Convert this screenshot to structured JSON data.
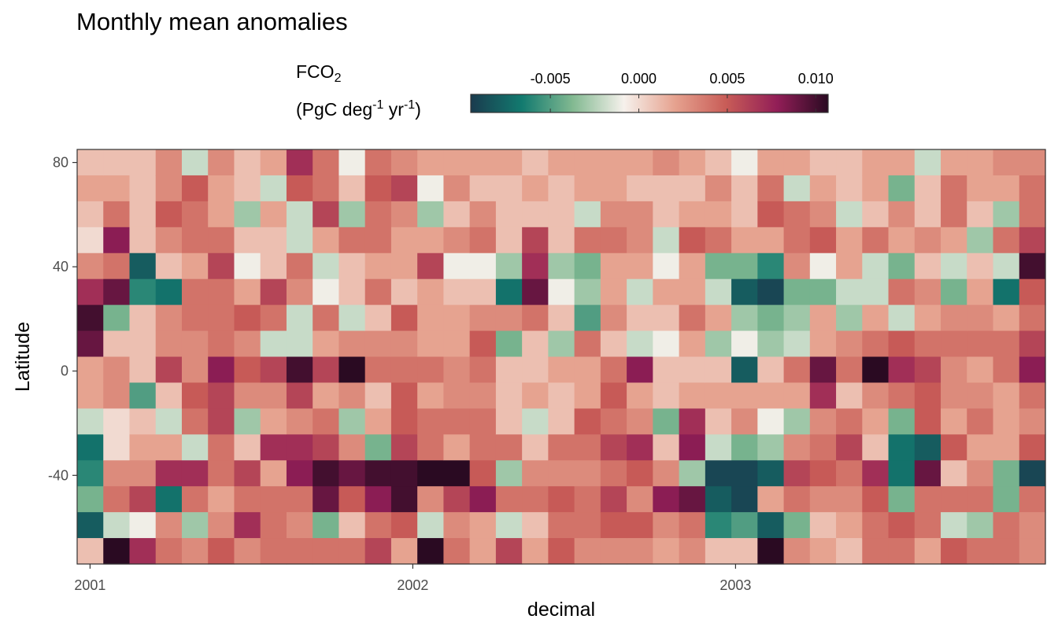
{
  "chart_data": {
    "type": "heatmap",
    "title": "Monthly mean anomalies",
    "xlabel": "decimal",
    "ylabel": "Latitude",
    "legend": {
      "title_line1": "FCO",
      "title_line1_sub": "2",
      "title_line2_a": "(PgC deg",
      "title_line2_sup1": "-1",
      "title_line2_b": " yr",
      "title_line2_sup2": "-1",
      "title_line2_c": ")",
      "placement": "top",
      "range": [
        -0.0095,
        0.0107
      ],
      "ticks": [
        -0.005,
        0.0,
        0.005,
        0.01
      ],
      "tick_labels": [
        "-0.005",
        "0.000",
        "0.005",
        "0.010"
      ],
      "colormap": [
        "#1a3b4e",
        "#127a6f",
        "#82b991",
        "#f6f1ec",
        "#e6a28f",
        "#c85c57",
        "#921e57",
        "#2a0a22"
      ]
    },
    "x_ticks": [
      2001,
      2002,
      2003
    ],
    "x_tick_labels": [
      "2001",
      "2002",
      "2003"
    ],
    "y_ticks": [
      80,
      40,
      0,
      -40
    ],
    "y_tick_labels": [
      "80",
      "40",
      "0",
      "-40"
    ],
    "xlim": [
      2000.96,
      2003.96
    ],
    "ylim": [
      -74,
      85
    ],
    "columns": [
      "2001-01",
      "2001-02",
      "2001-03",
      "2001-04",
      "2001-05",
      "2001-06",
      "2001-07",
      "2001-08",
      "2001-09",
      "2001-10",
      "2001-11",
      "2001-12",
      "2002-01",
      "2002-02",
      "2002-03",
      "2002-04",
      "2002-05",
      "2002-06",
      "2002-07",
      "2002-08",
      "2002-09",
      "2002-10",
      "2002-11",
      "2002-12",
      "2003-01",
      "2003-02",
      "2003-03",
      "2003-04",
      "2003-05",
      "2003-06",
      "2003-07",
      "2003-08",
      "2003-09",
      "2003-10",
      "2003-11",
      "2003-12",
      "2004-01"
    ],
    "lat_bands": [
      80,
      70,
      60,
      50,
      40,
      30,
      20,
      10,
      0,
      -10,
      -20,
      -30,
      -40,
      -50,
      -60,
      -70
    ],
    "values": [
      [
        0.001,
        0.002,
        0.001,
        0.0,
        0.003,
        0.007,
        0.01,
        0.009,
        0.002,
        0.002,
        -0.002,
        -0.007,
        -0.006,
        -0.004,
        -0.008,
        0.001
      ],
      [
        0.001,
        0.002,
        0.004,
        0.008,
        0.004,
        0.009,
        -0.004,
        0.001,
        0.003,
        0.003,
        0.0,
        0.0,
        0.003,
        0.004,
        -0.002,
        0.011
      ],
      [
        0.001,
        0.001,
        0.001,
        0.001,
        -0.008,
        -0.006,
        0.001,
        0.001,
        0.001,
        -0.005,
        0.001,
        0.002,
        0.003,
        0.006,
        -0.001,
        0.007
      ],
      [
        0.003,
        0.003,
        0.005,
        0.003,
        0.001,
        -0.007,
        0.003,
        0.003,
        0.006,
        0.001,
        -0.002,
        0.002,
        0.007,
        -0.007,
        0.003,
        0.004
      ],
      [
        -0.002,
        0.005,
        0.004,
        0.004,
        0.002,
        0.004,
        0.004,
        0.003,
        0.003,
        0.005,
        0.004,
        -0.002,
        0.007,
        0.004,
        -0.003,
        0.003
      ],
      [
        0.003,
        0.002,
        0.002,
        0.004,
        0.006,
        0.004,
        0.004,
        0.004,
        0.008,
        0.006,
        0.006,
        0.004,
        0.004,
        0.002,
        0.003,
        0.005
      ],
      [
        0.001,
        0.001,
        -0.003,
        0.001,
        -0.001,
        0.002,
        0.005,
        0.003,
        0.005,
        0.003,
        -0.003,
        0.001,
        0.006,
        0.004,
        0.007,
        0.003
      ],
      [
        0.002,
        -0.002,
        0.002,
        0.001,
        0.001,
        0.006,
        0.004,
        -0.002,
        0.006,
        0.003,
        0.002,
        0.007,
        0.002,
        0.004,
        0.004,
        0.004
      ],
      [
        0.007,
        0.005,
        -0.002,
        -0.002,
        0.004,
        0.003,
        -0.002,
        -0.002,
        0.01,
        0.006,
        0.003,
        0.007,
        0.008,
        0.004,
        0.003,
        0.004
      ],
      [
        0.004,
        0.004,
        0.006,
        0.002,
        -0.002,
        -0.001,
        0.004,
        0.002,
        0.006,
        0.002,
        0.004,
        0.006,
        0.01,
        0.009,
        -0.004,
        0.004
      ],
      [
        -0.001,
        0.001,
        -0.003,
        0.004,
        0.001,
        0.001,
        -0.002,
        0.003,
        0.011,
        0.003,
        -0.003,
        0.003,
        0.009,
        0.005,
        0.001,
        0.004
      ],
      [
        0.004,
        0.005,
        0.004,
        0.004,
        0.002,
        0.004,
        0.001,
        0.003,
        0.004,
        0.001,
        0.002,
        -0.004,
        0.01,
        0.008,
        0.004,
        0.006
      ],
      [
        0.003,
        0.006,
        0.003,
        0.002,
        0.002,
        0.001,
        0.005,
        0.003,
        0.004,
        0.005,
        0.005,
        0.006,
        0.01,
        0.01,
        0.005,
        0.002
      ],
      [
        0.002,
        -0.001,
        -0.003,
        0.002,
        0.006,
        0.002,
        0.002,
        0.002,
        0.004,
        0.002,
        0.004,
        0.004,
        0.011,
        0.003,
        -0.002,
        0.011
      ],
      [
        0.002,
        0.003,
        0.001,
        0.003,
        -0.001,
        0.001,
        0.002,
        0.002,
        0.003,
        0.003,
        0.004,
        0.002,
        0.011,
        0.006,
        0.003,
        0.004
      ],
      [
        0.002,
        0.001,
        0.003,
        0.004,
        -0.001,
        0.001,
        0.003,
        0.005,
        0.004,
        0.003,
        0.004,
        0.004,
        0.005,
        0.008,
        0.002,
        0.002
      ],
      [
        0.002,
        0.001,
        0.001,
        0.001,
        -0.003,
        -0.007,
        0.003,
        -0.004,
        0.001,
        0.001,
        0.001,
        0.004,
        -0.003,
        0.004,
        -0.002,
        0.006
      ],
      [
        0.001,
        0.002,
        0.001,
        0.006,
        0.007,
        0.009,
        0.004,
        0.001,
        0.001,
        0.002,
        -0.002,
        0.001,
        0.003,
        0.004,
        0.001,
        0.002
      ],
      [
        0.002,
        0.001,
        0.001,
        0.001,
        -0.003,
        -0.001,
        0.001,
        -0.003,
        0.002,
        0.001,
        0.001,
        0.004,
        0.003,
        0.005,
        0.004,
        0.005
      ],
      [
        0.002,
        0.002,
        -0.002,
        0.004,
        -0.004,
        -0.003,
        -0.005,
        0.004,
        0.002,
        0.002,
        0.005,
        0.004,
        0.003,
        0.004,
        0.004,
        0.003
      ],
      [
        0.002,
        0.002,
        0.003,
        0.004,
        0.002,
        0.002,
        0.003,
        0.001,
        0.004,
        0.005,
        0.004,
        0.006,
        0.004,
        0.006,
        0.005,
        0.003
      ],
      [
        0.002,
        0.001,
        0.003,
        0.003,
        0.002,
        -0.002,
        0.001,
        -0.002,
        0.008,
        0.002,
        0.003,
        0.007,
        0.005,
        0.003,
        0.005,
        0.003
      ],
      [
        0.003,
        0.001,
        0.001,
        -0.002,
        -0.001,
        0.002,
        0.001,
        -0.001,
        0.001,
        0.001,
        -0.004,
        0.001,
        0.003,
        0.008,
        0.003,
        0.002
      ],
      [
        0.002,
        0.001,
        0.002,
        0.005,
        0.002,
        0.002,
        0.004,
        0.002,
        0.001,
        0.002,
        0.007,
        0.008,
        -0.003,
        0.009,
        0.004,
        0.003
      ],
      [
        0.001,
        0.003,
        0.002,
        0.004,
        -0.004,
        -0.002,
        0.002,
        -0.003,
        0.001,
        0.002,
        0.001,
        -0.002,
        -0.009,
        -0.008,
        -0.006,
        0.001
      ],
      [
        -0.001,
        0.001,
        0.001,
        0.002,
        -0.004,
        -0.008,
        -0.003,
        -0.001,
        -0.008,
        0.002,
        0.003,
        -0.004,
        -0.009,
        -0.009,
        -0.005,
        0.001
      ],
      [
        0.002,
        0.004,
        0.005,
        0.002,
        -0.006,
        -0.009,
        -0.004,
        -0.003,
        0.001,
        0.002,
        -0.001,
        -0.003,
        -0.008,
        0.002,
        -0.008,
        0.011
      ],
      [
        0.002,
        -0.002,
        0.004,
        0.004,
        0.003,
        -0.004,
        -0.003,
        -0.002,
        0.004,
        0.002,
        -0.003,
        0.003,
        0.006,
        0.004,
        -0.004,
        0.003
      ],
      [
        0.001,
        0.002,
        0.003,
        0.005,
        -0.001,
        -0.004,
        0.002,
        0.002,
        0.009,
        0.007,
        0.003,
        0.004,
        0.005,
        0.003,
        0.001,
        0.002
      ],
      [
        0.001,
        0.001,
        -0.002,
        0.002,
        0.002,
        -0.002,
        -0.003,
        0.003,
        0.004,
        0.001,
        0.004,
        0.006,
        0.004,
        0.003,
        0.002,
        0.001
      ],
      [
        0.002,
        0.002,
        0.001,
        0.004,
        -0.002,
        -0.002,
        0.002,
        0.004,
        0.011,
        0.003,
        0.002,
        0.001,
        0.007,
        0.005,
        0.004,
        0.004
      ],
      [
        0.002,
        -0.004,
        0.003,
        0.002,
        -0.004,
        0.004,
        -0.002,
        0.005,
        0.007,
        0.004,
        -0.004,
        -0.007,
        -0.007,
        -0.004,
        0.005,
        0.004
      ],
      [
        -0.002,
        0.001,
        0.001,
        0.003,
        0.001,
        0.003,
        0.002,
        0.004,
        0.006,
        0.005,
        0.005,
        -0.008,
        0.009,
        0.004,
        0.004,
        0.002
      ],
      [
        0.002,
        0.004,
        0.004,
        0.002,
        -0.002,
        -0.004,
        0.003,
        0.004,
        0.003,
        0.003,
        0.002,
        0.005,
        0.001,
        0.004,
        -0.002,
        0.005
      ],
      [
        0.002,
        0.002,
        0.001,
        -0.003,
        0.001,
        0.002,
        0.003,
        0.004,
        0.002,
        0.003,
        0.004,
        0.002,
        0.003,
        0.004,
        -0.003,
        0.004
      ],
      [
        0.003,
        0.002,
        -0.003,
        0.004,
        -0.002,
        -0.007,
        0.002,
        0.004,
        0.004,
        0.002,
        0.002,
        0.002,
        -0.004,
        -0.004,
        0.004,
        0.004
      ],
      [
        0.003,
        0.004,
        0.004,
        0.006,
        0.01,
        0.005,
        0.004,
        0.006,
        0.008,
        0.004,
        0.003,
        0.005,
        -0.009,
        0.004,
        0.003,
        0.003
      ]
    ]
  }
}
